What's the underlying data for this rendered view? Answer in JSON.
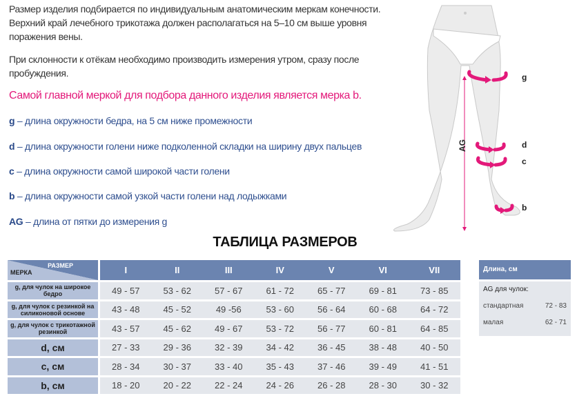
{
  "intro": {
    "p1": "Размер изделия подбирается по индивидуальным анатомическим меркам конечности. Верхний край лечебного трикотажа должен располагаться на 5–10 см выше уровня поражения вены.",
    "p2": "При склонности к отёкам необходимо производить измерения утром, сразу после пробуждения.",
    "highlight": "Самой главной меркой для подбора данного изделия является мерка b."
  },
  "definitions": [
    {
      "key": "g",
      "text": " – длина окружности бедра, на 5 см ниже промежности"
    },
    {
      "key": "d",
      "text": " – длина окружности голени ниже подколенной складки на ширину двух пальцев"
    },
    {
      "key": "c",
      "text": " – длина окружности самой широкой части голени"
    },
    {
      "key": "b",
      "text": " – длина окружности самой узкой части голени над лодыжками"
    },
    {
      "key": "AG",
      "text": " – длина от пятки до измерения g"
    }
  ],
  "figure": {
    "labels": {
      "g": "g",
      "d": "d",
      "c": "c",
      "b": "b",
      "ag": "AG"
    },
    "accent": "#e3197a"
  },
  "table": {
    "title": "ТАБЛИЦА РАЗМЕРОВ",
    "corner_size": "РАЗМЕР",
    "corner_measure": "МЕРКА",
    "sizes": [
      "I",
      "II",
      "III",
      "IV",
      "V",
      "VI",
      "VII"
    ],
    "rows": [
      {
        "label": "g, для чулок на широкое бедро",
        "values": [
          "49 - 57",
          "53 - 62",
          "57 - 67",
          "61 - 72",
          "65 - 77",
          "69 - 81",
          "73 - 85"
        ]
      },
      {
        "label": "g, для чулок с  резинкой на силиконовой основе",
        "values": [
          "43 - 48",
          "45 - 52",
          "49 -56",
          "53 - 60",
          "56 - 64",
          "60 - 68",
          "64 - 72"
        ]
      },
      {
        "label": "g, для чулок с трикотажной резинкой",
        "values": [
          "43 - 57",
          "45 - 62",
          "49 - 67",
          "53 - 72",
          "56 - 77",
          "60 - 81",
          "64 - 85"
        ]
      },
      {
        "label": "d, см",
        "values": [
          "27 - 33",
          "29 - 36",
          "32 - 39",
          "34 - 42",
          "36 - 45",
          "38 - 48",
          "40 - 50"
        ]
      },
      {
        "label": "c, см",
        "values": [
          "28 - 34",
          "30 - 37",
          "33 - 40",
          "35 - 43",
          "37 - 46",
          "39 - 49",
          "41 - 51"
        ]
      },
      {
        "label": "b, см",
        "values": [
          "18 - 20",
          "20 - 22",
          "22 - 24",
          "24 - 26",
          "26 - 28",
          "28 - 30",
          "30 - 32"
        ]
      }
    ],
    "colors": {
      "header": "#6b84b0",
      "label": "#b3c0d9",
      "cell": "#e4e7ec"
    }
  },
  "length": {
    "header": "Длина, см",
    "subtitle": "AG для чулок:",
    "rows": [
      {
        "label": "стандартная",
        "value": "72 - 83"
      },
      {
        "label": "малая",
        "value": "62 - 71"
      }
    ]
  }
}
